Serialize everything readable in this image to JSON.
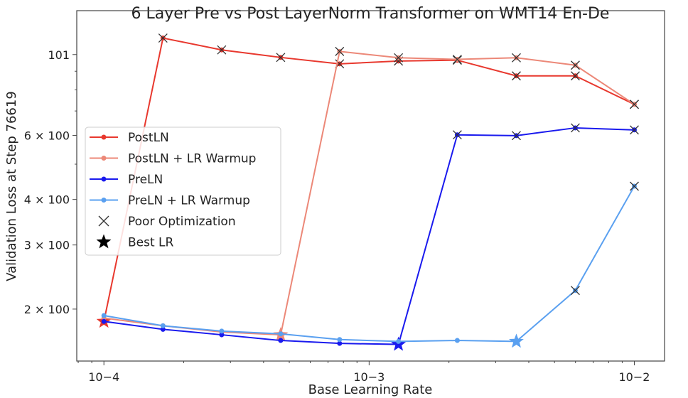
{
  "chart_data": {
    "type": "line",
    "title": "6 Layer Pre vs Post LayerNorm Transformer on WMT14 En-De",
    "xlabel": "Base Learning Rate",
    "ylabel": "Validation Loss at Step 76619",
    "xscale": "log",
    "yscale": "log",
    "xlim": [
      7.9e-05,
      0.013
    ],
    "ylim": [
      1.44,
      13.2
    ],
    "xticks": [
      {
        "value": 0.0001,
        "label": "10^-4"
      },
      {
        "value": 0.001,
        "label": "10^-3"
      },
      {
        "value": 0.01,
        "label": "10^-2"
      }
    ],
    "yticks": [
      {
        "value": 2,
        "label": "2 × 10^0"
      },
      {
        "value": 3,
        "label": "3 × 10^0"
      },
      {
        "value": 4,
        "label": "4 × 10^0"
      },
      {
        "value": 6,
        "label": "6 × 10^0"
      },
      {
        "value": 10,
        "label": "10^1"
      }
    ],
    "grid": false,
    "legend_position": "center-left",
    "x": [
      0.0001,
      0.000167,
      0.000278,
      0.000464,
      0.000774,
      0.00129,
      0.00215,
      0.00359,
      0.00599,
      0.01
    ],
    "series": [
      {
        "name": "PostLN",
        "color": "#e8382e",
        "values": [
          1.85,
          11.1,
          10.3,
          9.82,
          9.43,
          9.6,
          9.65,
          8.74,
          8.74,
          7.3
        ],
        "poor_optimization": [
          false,
          true,
          true,
          true,
          true,
          true,
          true,
          true,
          true,
          true
        ],
        "best_index": 0
      },
      {
        "name": "PostLN + LR Warmup",
        "color": "#ec8878",
        "values": [
          1.89,
          1.8,
          1.73,
          1.7,
          10.2,
          9.8,
          9.7,
          9.8,
          9.35,
          7.3
        ],
        "poor_optimization": [
          false,
          false,
          false,
          false,
          true,
          true,
          true,
          true,
          true,
          true
        ],
        "best_index": 3
      },
      {
        "name": "PreLN",
        "color": "#1a1aee",
        "values": [
          1.85,
          1.76,
          1.7,
          1.64,
          1.61,
          1.6,
          6.02,
          5.99,
          6.29,
          6.21
        ],
        "poor_optimization": [
          false,
          false,
          false,
          false,
          false,
          false,
          true,
          true,
          true,
          true
        ],
        "best_index": 5
      },
      {
        "name": "PreLN + LR Warmup",
        "color": "#5aa0f0",
        "values": [
          1.92,
          1.8,
          1.74,
          1.71,
          1.65,
          1.63,
          1.64,
          1.63,
          2.25,
          4.35
        ],
        "poor_optimization": [
          false,
          false,
          false,
          false,
          false,
          false,
          false,
          false,
          true,
          true
        ],
        "best_index": 7
      }
    ],
    "legend": [
      {
        "label": "PostLN",
        "kind": "line",
        "color": "#e8382e"
      },
      {
        "label": "PostLN + LR Warmup",
        "kind": "line",
        "color": "#ec8878"
      },
      {
        "label": "PreLN",
        "kind": "line",
        "color": "#1a1aee"
      },
      {
        "label": "PreLN + LR Warmup",
        "kind": "line",
        "color": "#5aa0f0"
      },
      {
        "label": "Poor Optimization",
        "kind": "x-marker",
        "color": "#333333"
      },
      {
        "label": "Best LR",
        "kind": "star-marker",
        "color": "#000000"
      }
    ]
  }
}
